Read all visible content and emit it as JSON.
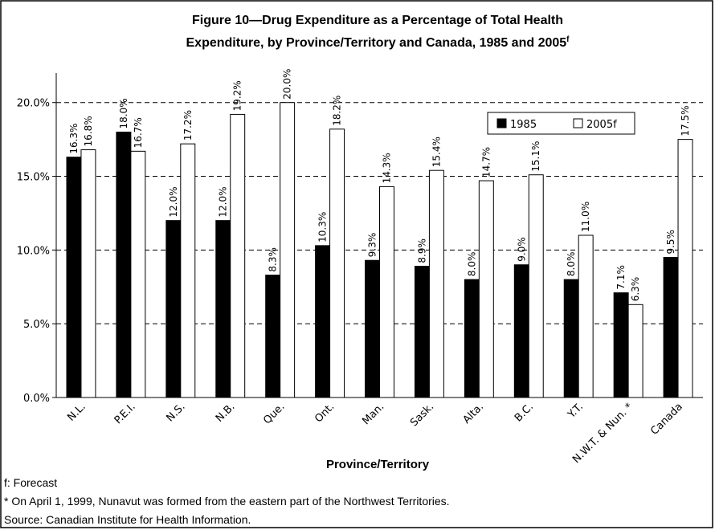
{
  "chart_data": {
    "type": "bar",
    "title": [
      "Figure 10—Drug Expenditure as a Percentage of Total Health",
      "Expenditure, by Province/Territory and Canada, 1985 and 2005"
    ],
    "title_superscript": "f",
    "x_label": "Province/Territory",
    "categories": [
      "N.L.",
      "P.E.I.",
      "N.S.",
      "N.B.",
      "Que.",
      "Ont.",
      "Man.",
      "Sask.",
      "Alta.",
      "B.C.",
      "Y.T.",
      "N.W.T. & Nun. *",
      "Canada"
    ],
    "series": [
      {
        "name": "1985",
        "color": "#000000",
        "values": [
          16.3,
          18.0,
          12.0,
          12.0,
          8.3,
          10.3,
          9.3,
          8.9,
          8.0,
          9.0,
          8.0,
          7.1,
          9.5
        ],
        "value_labels": [
          "16.3%",
          "18.0%",
          "12.0%",
          "12.0%",
          "8.3%",
          "10.3%",
          "9.3%",
          "8.9%",
          "8.0%",
          "9.0%",
          "8.0%",
          "7.1%",
          "9.5%"
        ]
      },
      {
        "name": "2005f",
        "color": "#ffffff",
        "values": [
          16.8,
          16.7,
          17.2,
          19.2,
          20.0,
          18.2,
          14.3,
          15.4,
          14.7,
          15.1,
          11.0,
          6.3,
          17.5
        ],
        "value_labels": [
          "16.8%",
          "16.7%",
          "17.2%",
          "19.2%",
          "20.0%",
          "18.2%",
          "14.3%",
          "15.4%",
          "14.7%",
          "15.1%",
          "11.0%",
          "6.3%",
          "17.5%"
        ]
      }
    ],
    "ylim": [
      0,
      22
    ],
    "yticks": [
      {
        "value": 0,
        "label": "0.0%"
      },
      {
        "value": 5,
        "label": "5.0%"
      },
      {
        "value": 10,
        "label": "10.0%"
      },
      {
        "value": 15,
        "label": "15.0%"
      },
      {
        "value": 20,
        "label": "20.0%"
      }
    ],
    "grid": true,
    "legend": "top-right",
    "notes": [
      "f: Forecast",
      "* On April 1, 1999, Nunavut was formed from the eastern part of the Northwest Territories.",
      "Source: Canadian Institute for Health Information."
    ]
  }
}
